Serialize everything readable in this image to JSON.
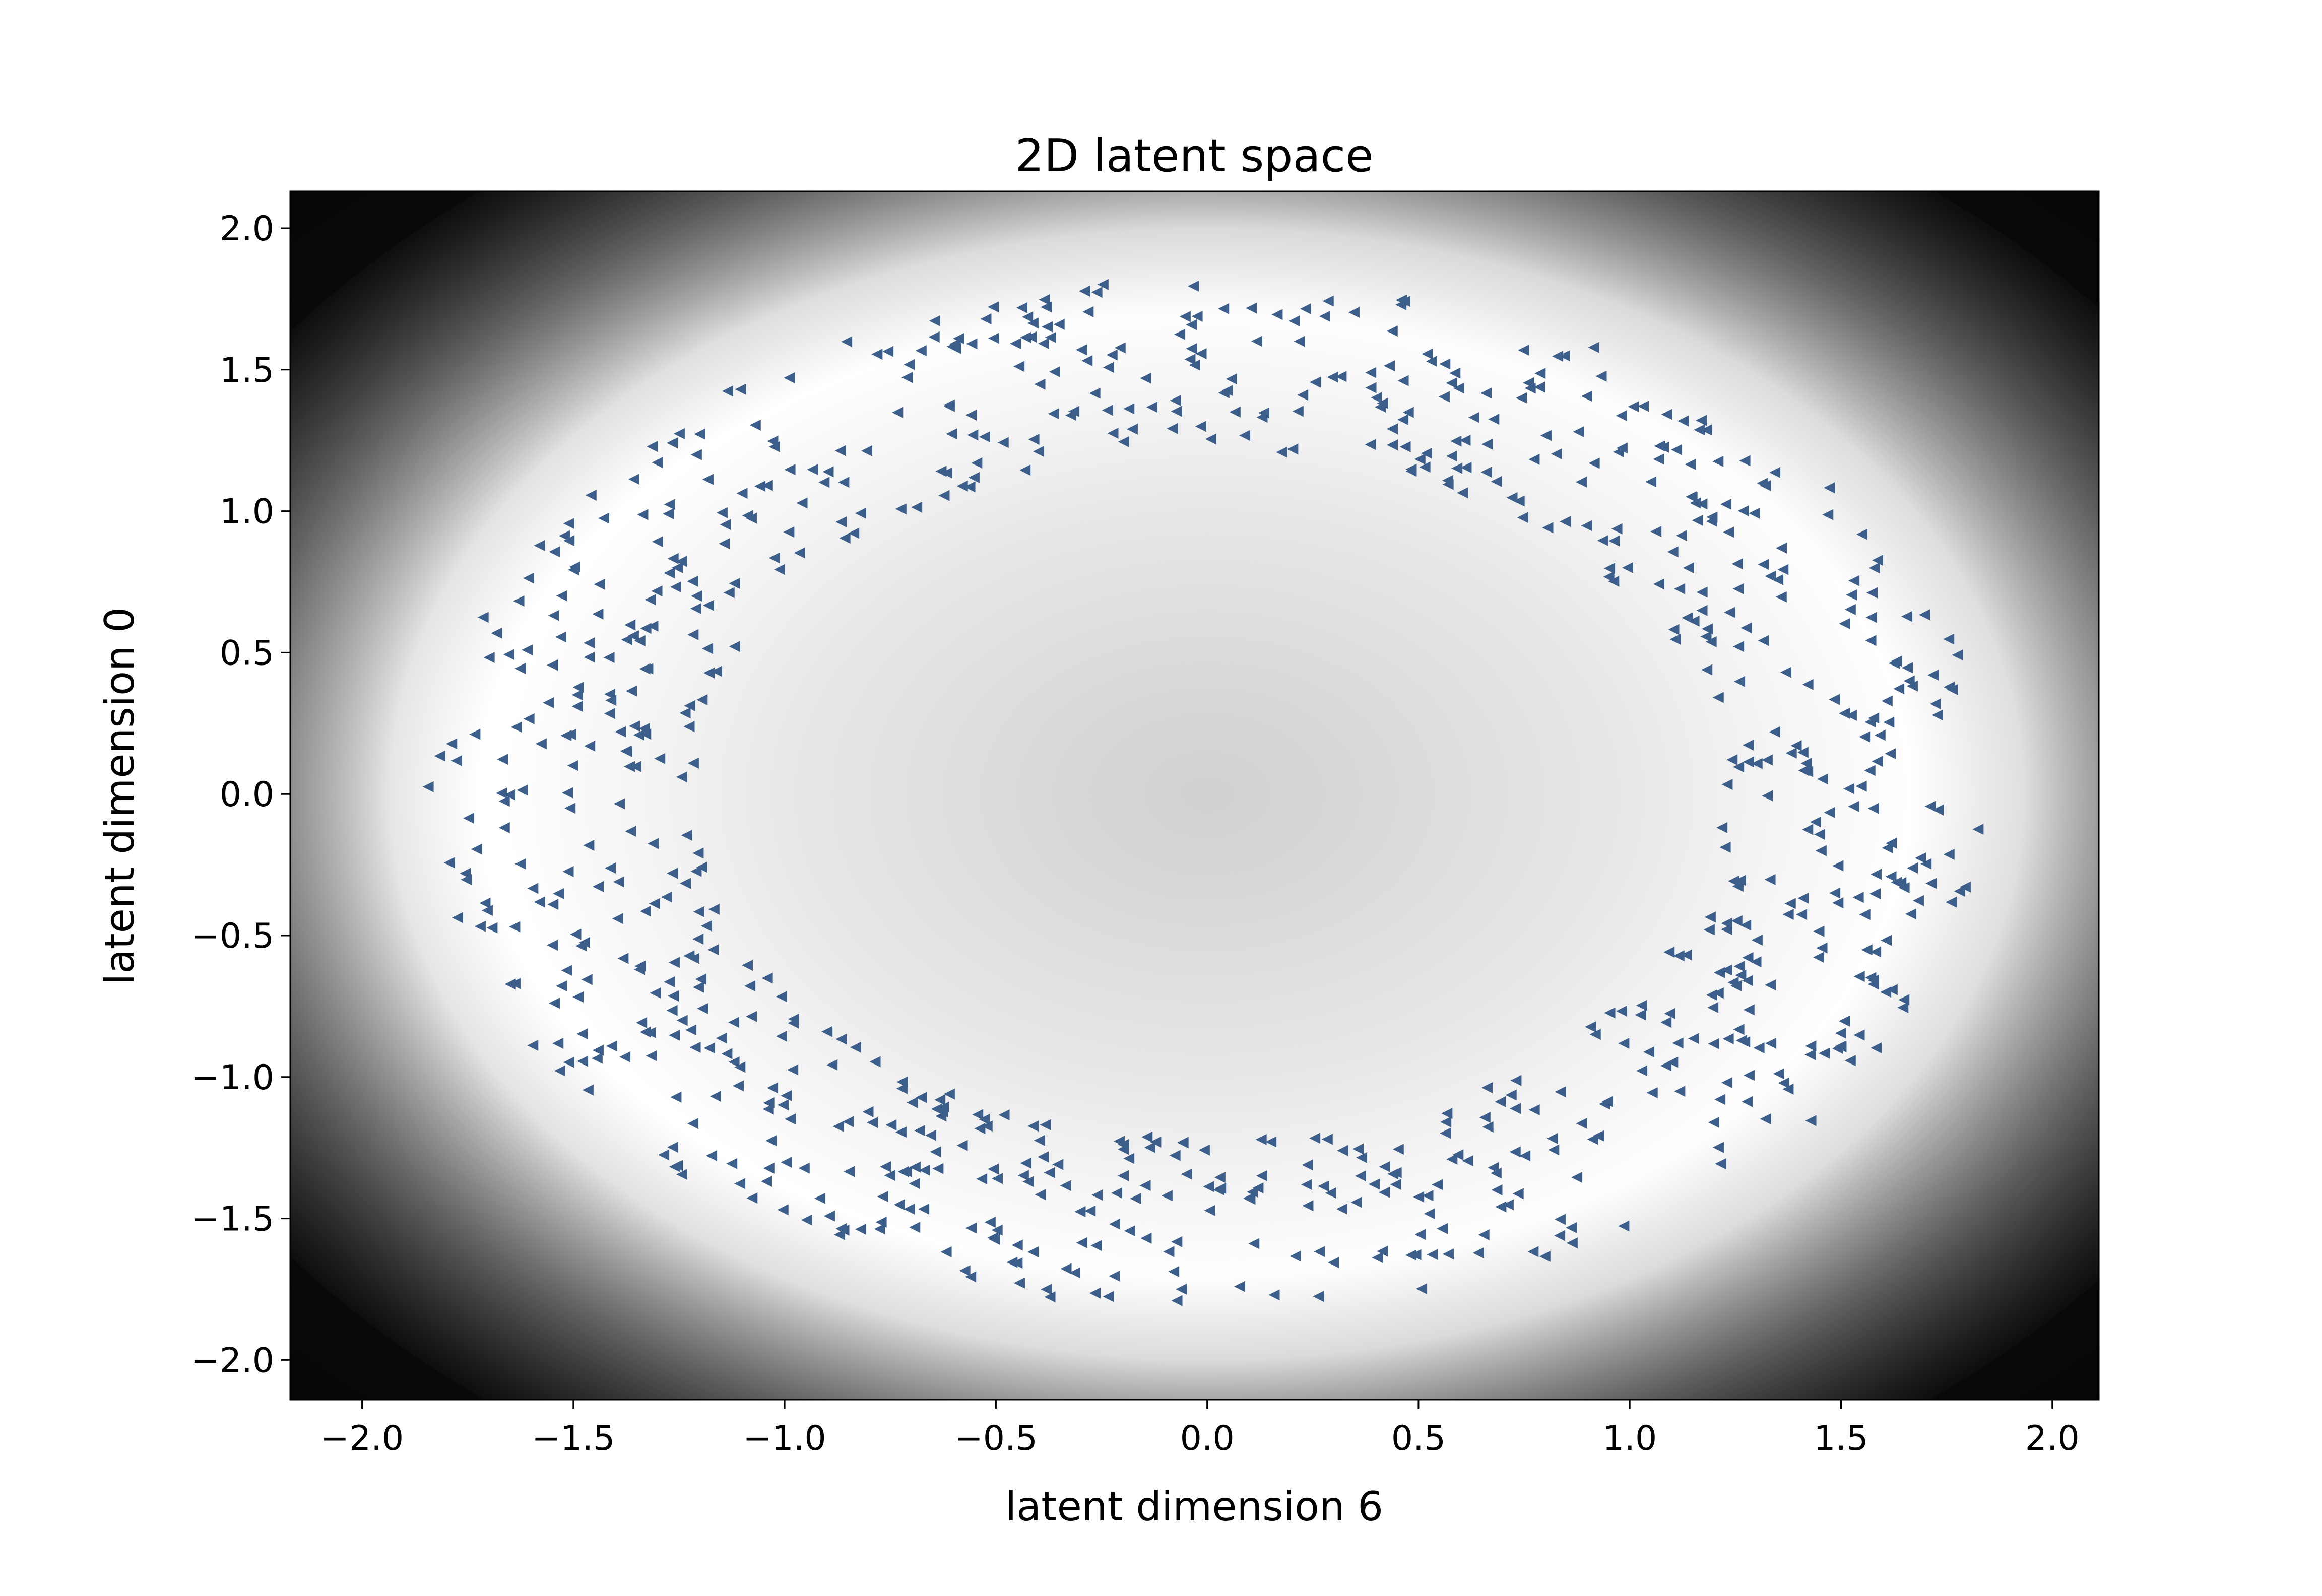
{
  "chart_data": {
    "type": "scatter",
    "title": "2D latent space",
    "xlabel": "latent dimension 6",
    "ylabel": "latent dimension 0",
    "xlim": [
      -2.17,
      2.11
    ],
    "ylim": [
      -2.14,
      2.13
    ],
    "xticks": [
      -2.0,
      -1.5,
      -1.0,
      -0.5,
      0.0,
      0.5,
      1.0,
      1.5,
      2.0
    ],
    "xtick_labels": [
      "−2.0",
      "−1.5",
      "−1.0",
      "−0.5",
      "0.0",
      "0.5",
      "1.0",
      "1.5",
      "2.0"
    ],
    "yticks": [
      2.0,
      1.5,
      1.0,
      0.5,
      0.0,
      -0.5,
      -1.0,
      -1.5,
      -2.0
    ],
    "ytick_labels": [
      "2.0",
      "1.5",
      "1.0",
      "0.5",
      "0.0",
      "−0.5",
      "−1.0",
      "−1.5",
      "−2.0"
    ],
    "background": "density heatmap (greyscale): light inside the ring, dark toward the corners",
    "marker": "left-pointing triangle",
    "marker_color": "#3b5f8a",
    "ring": {
      "center": [
        0.0,
        0.0
      ],
      "inner_radius_x": 1.22,
      "inner_radius_y": 1.22,
      "outer_radius_x": 1.85,
      "outer_radius_y": 1.82
    },
    "point_count": 900
  }
}
